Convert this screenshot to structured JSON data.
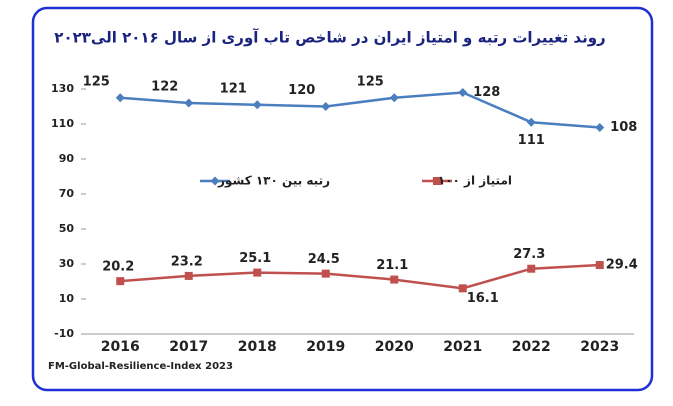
{
  "chart_data": {
    "type": "line",
    "title": "روند تغییرات رتبه و امتیاز ایران در شاخص تاب آوری از سال ۲۰۱۶ الی۲۰۲۳",
    "categories": [
      "2016",
      "2017",
      "2018",
      "2019",
      "2020",
      "2021",
      "2022",
      "2023"
    ],
    "series": [
      {
        "name": "رتبه بین ۱۳۰ کشور",
        "color": "#4a7ebf",
        "marker": "diamond",
        "values": [
          125,
          122,
          121,
          120,
          125,
          128,
          111,
          108
        ]
      },
      {
        "name": "امتیاز از ۱۰۰",
        "color": "#c0504d",
        "marker": "square",
        "values": [
          20.2,
          23.2,
          25.1,
          24.5,
          21.1,
          16.1,
          27.3,
          29.4
        ]
      }
    ],
    "ylim": [
      -10,
      130
    ],
    "yticks": [
      -10,
      10,
      30,
      50,
      70,
      90,
      110,
      130
    ],
    "grid": false,
    "source": "FM-Global-Resilience-Index 2023"
  }
}
